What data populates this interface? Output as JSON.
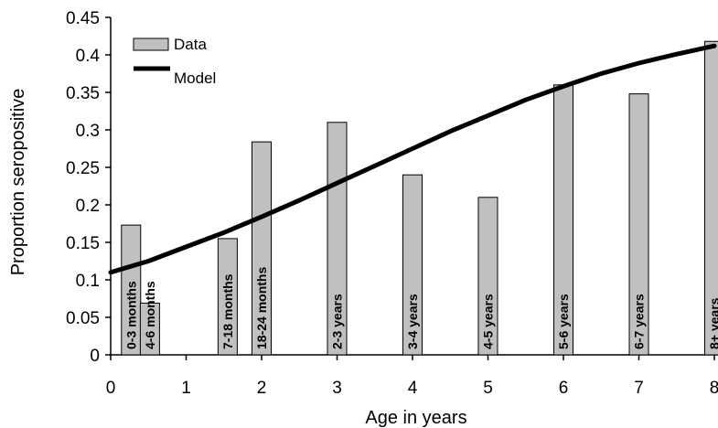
{
  "chart_data": {
    "type": "bar",
    "title": "",
    "xlabel": "Age in years",
    "ylabel": "Proportion seropositive",
    "xlim": [
      0,
      8
    ],
    "ylim": [
      0,
      0.45
    ],
    "x_ticks": [
      "0",
      "1",
      "2",
      "3",
      "4",
      "5",
      "6",
      "7",
      "8"
    ],
    "y_ticks": [
      "0",
      "0.05",
      "0.1",
      "0.15",
      "0.2",
      "0.25",
      "0.3",
      "0.35",
      "0.4",
      "0.45"
    ],
    "grid": false,
    "legend": {
      "position": "top-left",
      "entries": [
        "Data",
        "Model"
      ]
    },
    "series": [
      {
        "name": "Data",
        "kind": "bar",
        "color": "#c0c0c0",
        "bars": [
          {
            "label": "0-3 months",
            "x": 0.27,
            "value": 0.173
          },
          {
            "label": "4-6 months",
            "x": 0.52,
            "value": 0.069
          },
          {
            "label": "7-18 months",
            "x": 1.55,
            "value": 0.155
          },
          {
            "label": "18-24 months",
            "x": 2.0,
            "value": 0.284
          },
          {
            "label": "2-3 years",
            "x": 3.0,
            "value": 0.31
          },
          {
            "label": "3-4 years",
            "x": 4.0,
            "value": 0.24
          },
          {
            "label": "4-5 years",
            "x": 5.0,
            "value": 0.21
          },
          {
            "label": "5-6 years",
            "x": 6.0,
            "value": 0.36
          },
          {
            "label": "6-7 years",
            "x": 7.0,
            "value": 0.348
          },
          {
            "label": "8+ years",
            "x": 8.0,
            "value": 0.418
          }
        ]
      },
      {
        "name": "Model",
        "kind": "line",
        "color": "#000000",
        "x": [
          0,
          0.5,
          1,
          1.5,
          2,
          2.5,
          3,
          3.5,
          4,
          4.5,
          5,
          5.5,
          6,
          6.5,
          7,
          7.5,
          8
        ],
        "y": [
          0.11,
          0.125,
          0.144,
          0.163,
          0.184,
          0.206,
          0.229,
          0.252,
          0.275,
          0.298,
          0.319,
          0.34,
          0.358,
          0.375,
          0.389,
          0.401,
          0.412
        ]
      }
    ]
  }
}
